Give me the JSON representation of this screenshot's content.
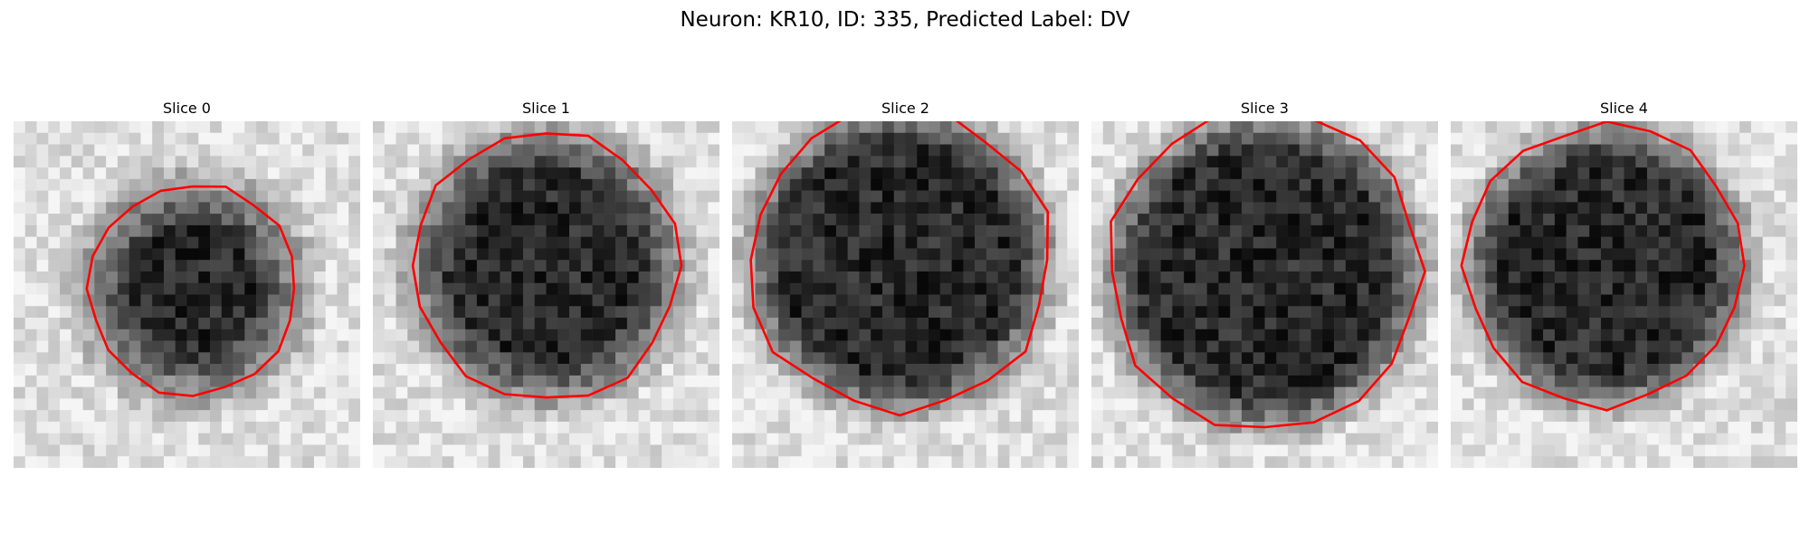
{
  "figure": {
    "title": "Neuron: KR10, ID: 335, Predicted Label: DV"
  },
  "panels": [
    {
      "title": "Slice 0",
      "image": "grayscale microscopy patch with roughly circular dark neuron body",
      "outline_color": "#ff0000"
    },
    {
      "title": "Slice 1",
      "image": "grayscale microscopy patch with roughly circular dark neuron body",
      "outline_color": "#ff0000"
    },
    {
      "title": "Slice 2",
      "image": "grayscale microscopy patch with roughly circular dark neuron body",
      "outline_color": "#ff0000"
    },
    {
      "title": "Slice 3",
      "image": "grayscale microscopy patch with roughly circular dark neuron body",
      "outline_color": "#ff0000"
    },
    {
      "title": "Slice 4",
      "image": "grayscale microscopy patch with roughly circular dark neuron body",
      "outline_color": "#ff0000"
    }
  ]
}
